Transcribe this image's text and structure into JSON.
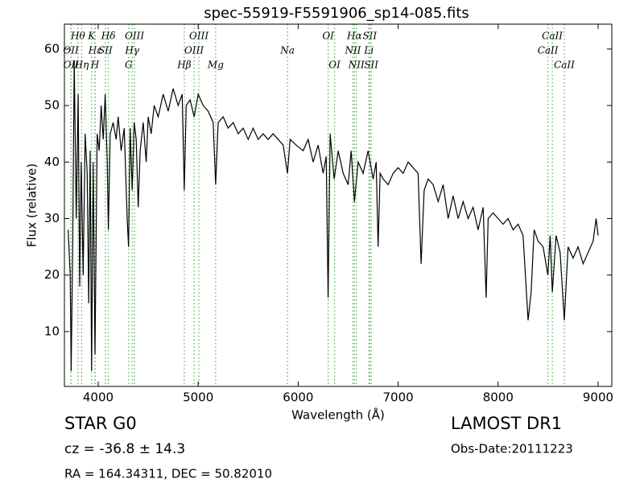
{
  "chart_data": {
    "type": "line",
    "title": "spec-55919-F5591906_sp14-085.fits",
    "xlabel": "Wavelength (Å)",
    "ylabel": "Flux (relative)",
    "xlim": [
      3662,
      9137
    ],
    "ylim": [
      0.3,
      64.4
    ],
    "xticks": [
      4000,
      5000,
      6000,
      7000,
      8000,
      9000
    ],
    "yticks": [
      10,
      20,
      30,
      40,
      50,
      60
    ],
    "color": "#000000",
    "line_color": "#4daf4a",
    "lines": [
      {
        "label": "Hθ",
        "x": 3798
      },
      {
        "label": "K",
        "x": 3934
      },
      {
        "label": "Hδ",
        "x": 4102
      },
      {
        "label": "OIII",
        "x": 4363
      },
      {
        "label": "OIII",
        "x": 5007
      },
      {
        "label": "OI",
        "x": 6300
      },
      {
        "label": "Hα",
        "x": 6563
      },
      {
        "label": "SII",
        "x": 6716
      },
      {
        "label": "CaII",
        "x": 8542
      },
      {
        "label": "OII",
        "x": 3727
      },
      {
        "label": "Hε",
        "x": 3970
      },
      {
        "label": "SII",
        "x": 4072
      },
      {
        "label": "Hγ",
        "x": 4340
      },
      {
        "label": "OIII",
        "x": 4959
      },
      {
        "label": "Na",
        "x": 5893
      },
      {
        "label": "NII",
        "x": 6548
      },
      {
        "label": "Li",
        "x": 6708
      },
      {
        "label": "CaII",
        "x": 8498
      },
      {
        "label": "OII",
        "x": 3729
      },
      {
        "label": "Hη",
        "x": 3835
      },
      {
        "label": "H",
        "x": 3968
      },
      {
        "label": "G",
        "x": 4304
      },
      {
        "label": "Hβ",
        "x": 4861
      },
      {
        "label": "Mg",
        "x": 5175
      },
      {
        "label": "OI",
        "x": 6364
      },
      {
        "label": "NII",
        "x": 6583
      },
      {
        "label": "SII",
        "x": 6731
      },
      {
        "label": "CaII",
        "x": 8662
      }
    ],
    "x": [
      3700,
      3720,
      3730,
      3745,
      3760,
      3780,
      3800,
      3815,
      3830,
      3850,
      3870,
      3890,
      3905,
      3920,
      3934,
      3950,
      3968,
      3990,
      4010,
      4030,
      4050,
      4070,
      4090,
      4102,
      4120,
      4150,
      4180,
      4200,
      4230,
      4260,
      4290,
      4304,
      4320,
      4340,
      4360,
      4380,
      4400,
      4420,
      4450,
      4480,
      4500,
      4530,
      4560,
      4600,
      4650,
      4700,
      4750,
      4800,
      4840,
      4861,
      4880,
      4920,
      4960,
      5000,
      5050,
      5100,
      5150,
      5175,
      5200,
      5250,
      5300,
      5350,
      5400,
      5450,
      5500,
      5550,
      5600,
      5650,
      5700,
      5750,
      5800,
      5850,
      5893,
      5920,
      5980,
      6050,
      6100,
      6150,
      6200,
      6250,
      6280,
      6300,
      6320,
      6360,
      6400,
      6450,
      6500,
      6530,
      6563,
      6600,
      6650,
      6700,
      6750,
      6780,
      6800,
      6820,
      6850,
      6900,
      6950,
      7000,
      7050,
      7100,
      7150,
      7200,
      7230,
      7260,
      7300,
      7350,
      7400,
      7450,
      7500,
      7550,
      7600,
      7650,
      7700,
      7750,
      7800,
      7850,
      7880,
      7900,
      7950,
      8000,
      8050,
      8100,
      8150,
      8200,
      8250,
      8300,
      8330,
      8360,
      8400,
      8450,
      8498,
      8520,
      8542,
      8580,
      8620,
      8662,
      8700,
      8750,
      8800,
      8850,
      8900,
      8950,
      8980,
      9000
    ],
    "values": [
      28,
      20,
      3,
      25,
      58,
      30,
      52,
      18,
      40,
      20,
      45,
      38,
      15,
      42,
      3,
      40,
      6,
      45,
      42,
      50,
      44,
      52,
      40,
      28,
      45,
      47,
      44,
      48,
      42,
      46,
      30,
      25,
      46,
      35,
      47,
      44,
      32,
      42,
      47,
      40,
      48,
      45,
      50,
      48,
      52,
      49,
      53,
      50,
      52,
      35,
      50,
      51,
      48,
      52,
      50,
      49,
      47,
      36,
      47,
      48,
      46,
      47,
      45,
      46,
      44,
      46,
      44,
      45,
      44,
      45,
      44,
      43,
      38,
      44,
      43,
      42,
      44,
      40,
      43,
      38,
      41,
      16,
      45,
      37,
      42,
      38,
      36,
      42,
      33,
      40,
      38,
      42,
      37,
      40,
      25,
      38,
      37,
      36,
      38,
      39,
      38,
      40,
      39,
      38,
      22,
      35,
      37,
      36,
      33,
      36,
      30,
      34,
      30,
      33,
      30,
      32,
      28,
      32,
      16,
      30,
      31,
      30,
      29,
      30,
      28,
      29,
      27,
      12,
      17,
      28,
      26,
      25,
      20,
      27,
      17,
      27,
      24,
      12,
      25,
      23,
      25,
      22,
      24,
      26,
      30,
      27
    ],
    "annotations": [
      "STAR   G0",
      "cz = -36.8 ± 14.3",
      "RA = 164.34311, DEC = 50.82010",
      "LAMOST DR1",
      "Obs-Date:20111223"
    ]
  }
}
